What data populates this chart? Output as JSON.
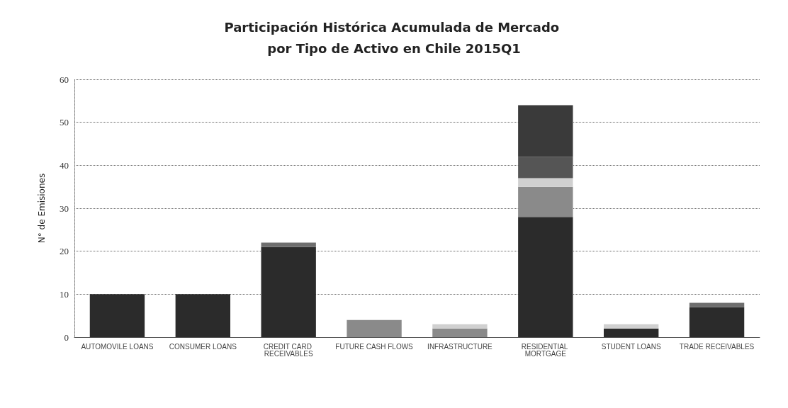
{
  "chart_data": {
    "type": "bar",
    "title": "Participación Histórica Acumulada de Mercado por Tipo de Activo en Chile 2015Q1",
    "ylabel": "N° de Emisiones",
    "categories": [
      "AUTOMOVILE LOANS",
      "CONSUMER LOANS",
      "CREDIT CARD RECEIVABLES",
      "FUTURE CASH FLOWS",
      "INFRASTRUCTURE",
      "RESIDENTIAL MORTGAGE",
      "STUDENT LOANS",
      "TRADE RECEIVABLES"
    ],
    "stacked": true,
    "series": [
      {
        "color": "#2b2b2b",
        "values": [
          10,
          10,
          21,
          null,
          null,
          28,
          2,
          7
        ]
      },
      {
        "color": "#8a8a8a",
        "values": [
          null,
          null,
          null,
          4,
          2,
          7,
          null,
          null
        ]
      },
      {
        "color": "#d0d0d0",
        "values": [
          null,
          null,
          null,
          null,
          1,
          2,
          1,
          null
        ]
      },
      {
        "color": "#555555",
        "values": [
          null,
          null,
          null,
          null,
          null,
          5,
          null,
          null
        ]
      },
      {
        "color": "#6e6e6e",
        "values": [
          null,
          null,
          1,
          null,
          null,
          null,
          null,
          1
        ]
      },
      {
        "color": "#3a3a3a",
        "values": [
          null,
          null,
          null,
          null,
          null,
          12,
          null,
          null
        ]
      }
    ],
    "ylim": [
      0,
      60
    ],
    "yticks": [
      0,
      10,
      20,
      30,
      40,
      50,
      60
    ],
    "grid": "y"
  }
}
